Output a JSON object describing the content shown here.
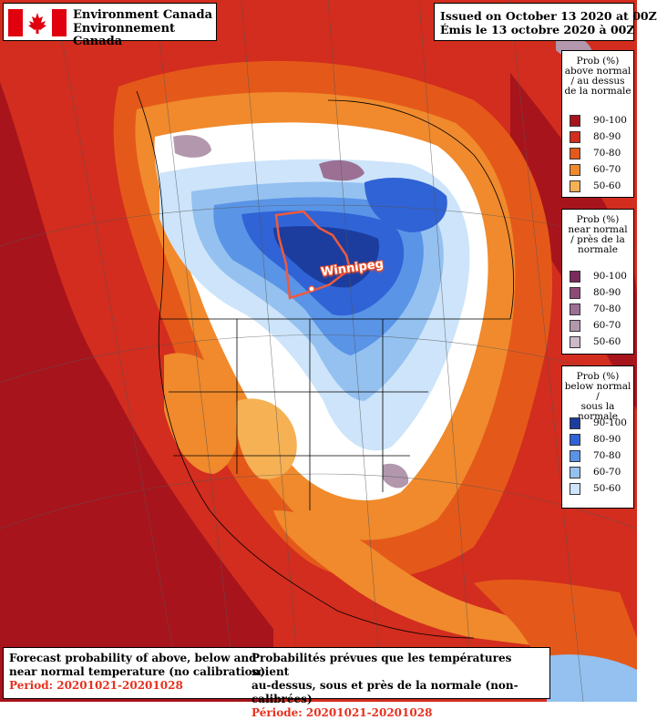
{
  "agency": {
    "name_en": "Environment Canada",
    "name_fr": "Environnement Canada"
  },
  "issued": {
    "en": "Issued on October 13 2020 at 00Z",
    "fr": "Émis le 13 octobre 2020 à 00Z"
  },
  "city_label": "Winnipeg",
  "colors": {
    "above": [
      "#a8141c",
      "#d22d1e",
      "#e4591a",
      "#f08a2c",
      "#f5b154"
    ],
    "near": [
      "#7a2b5c",
      "#8e4b78",
      "#9c7094",
      "#b297ad",
      "#cdb8c8"
    ],
    "below": [
      "#1c3d9e",
      "#2f63d6",
      "#5a94e6",
      "#94c1f0",
      "#cde4fa"
    ],
    "province": "#ef5a3c"
  },
  "legends": [
    {
      "key": "above",
      "heading": [
        "Prob (%)",
        "above normal",
        "/ au dessus",
        "de la normale"
      ],
      "labels": [
        "90-100",
        "80-90",
        "70-80",
        "60-70",
        "50-60"
      ]
    },
    {
      "key": "near",
      "heading": [
        "Prob (%)",
        "near normal",
        "/ près de la",
        "normale"
      ],
      "labels": [
        "90-100",
        "80-90",
        "70-80",
        "60-70",
        "50-60"
      ]
    },
    {
      "key": "below",
      "heading": [
        "Prob (%)",
        "below normal /",
        "sous la normale"
      ],
      "labels": [
        "90-100",
        "80-90",
        "70-80",
        "60-70",
        "50-60"
      ]
    }
  ],
  "footer": {
    "en_line1": "Forecast probability of above, below and",
    "en_line2": "near normal temperature (no calibration)",
    "en_period": "Period: 20201021-20201028",
    "fr_line1": "Probabilités prévues que les températures soient",
    "fr_line2": "au-dessus, sous et près de la normale (non-calibrées)",
    "fr_period": "Période: 20201021-20201028"
  }
}
